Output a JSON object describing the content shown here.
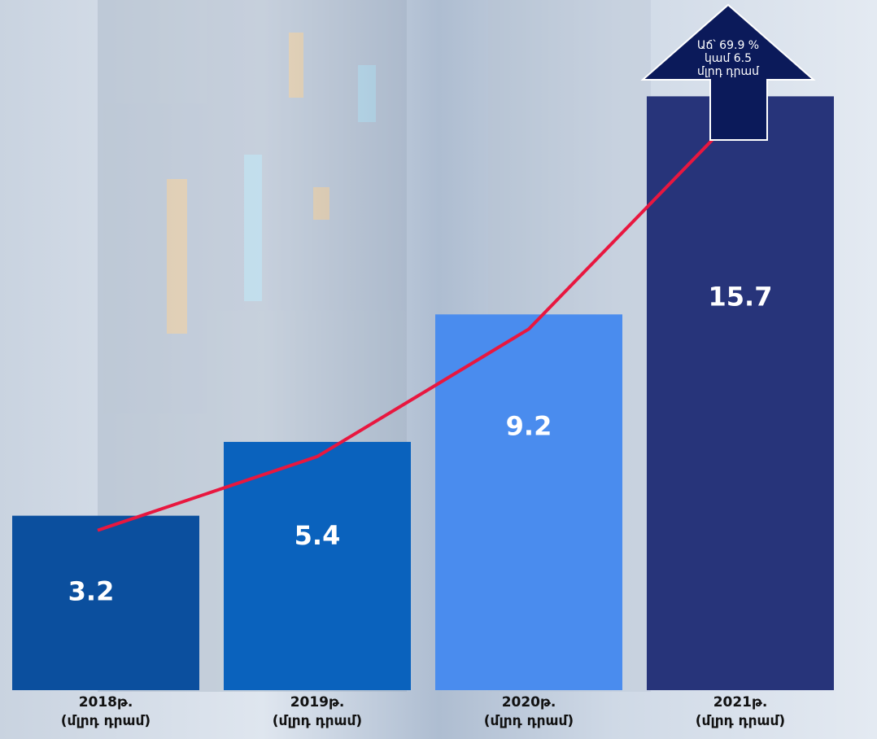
{
  "chart_data": {
    "type": "bar",
    "categories": [
      "2018թ.\n(մլրդ դրամ)",
      "2019թ.\n(մլրդ դրամ)",
      "2020թ.\n(մլրդ դրամ)",
      "2021թ.\n(մլրդ դրամ)"
    ],
    "values": [
      3.2,
      5.4,
      9.2,
      15.7
    ],
    "colors": [
      "#0b4f9e",
      "#0a62bd",
      "#4a8cee",
      "#27347a"
    ],
    "line_color": "#e8173f",
    "ylim": [
      -2,
      16
    ],
    "annotation": "Աճ՝ 69.9 %\nկամ 6.5\nմլրդ դրամ"
  }
}
